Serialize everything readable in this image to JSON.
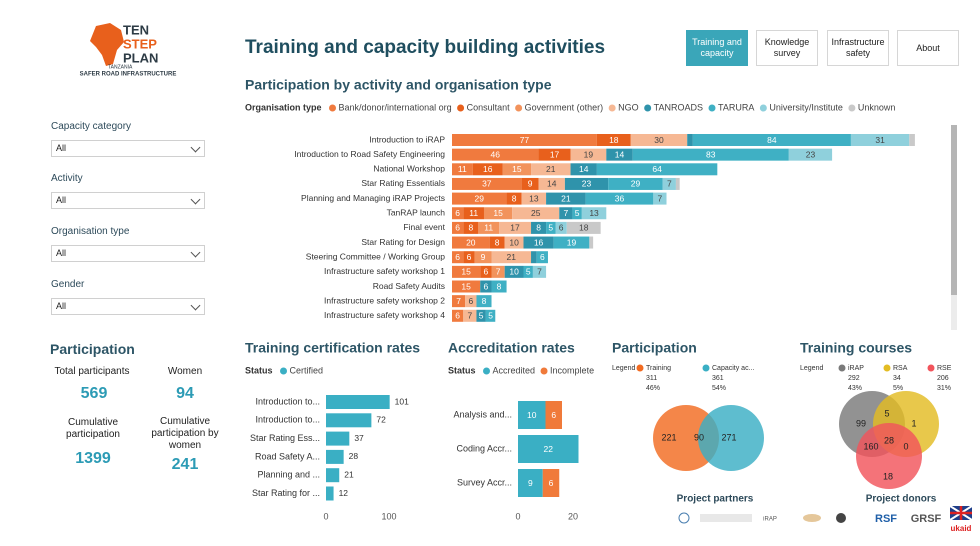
{
  "header": {
    "logo": {
      "line1": "TEN",
      "line2": "STEP",
      "line3": "PLAN",
      "country": "TANZANIA",
      "tagline": "SAFER ROAD INFRASTRUCTURE"
    },
    "title": "Training and capacity building activities"
  },
  "nav": [
    {
      "label": "Training and capacity",
      "active": true
    },
    {
      "label": "Knowledge survey",
      "active": false
    },
    {
      "label": "Infrastructure safety",
      "active": false
    },
    {
      "label": "About",
      "active": false
    }
  ],
  "filters": [
    {
      "label": "Capacity category",
      "value": "All"
    },
    {
      "label": "Activity",
      "value": "All"
    },
    {
      "label": "Organisation type",
      "value": "All"
    },
    {
      "label": "Gender",
      "value": "All"
    }
  ],
  "kpis": {
    "title": "Participation",
    "items": [
      {
        "label": "Total participants",
        "value": 569
      },
      {
        "label": "Women",
        "value": 94
      },
      {
        "label": "Cumulative participation",
        "value": 1399
      },
      {
        "label": "Cumulative participation by women",
        "value": 241
      }
    ]
  },
  "chart_data": [
    {
      "type": "bar",
      "orientation": "horizontal",
      "stacked": true,
      "title": "Participation by activity and organisation type",
      "legend_title": "Organisation type",
      "categories": [
        "Introduction to iRAP",
        "Introduction to Road Safety Engineering",
        "National Workshop",
        "Star Rating Essentials",
        "Planning and Managing iRAP Projects",
        "TanRAP launch",
        "Final event",
        "Star Rating for Design",
        "Steering Committee / Working Group",
        "Infrastructure safety workshop 1",
        "Road Safety Audits",
        "Infrastructure safety workshop 2",
        "Infrastructure safety workshop 4"
      ],
      "series": [
        {
          "name": "Bank/donor/international org",
          "color": "#f07a3e",
          "values": [
            77,
            46,
            11,
            37,
            29,
            6,
            6,
            20,
            6,
            15,
            15,
            7,
            6
          ]
        },
        {
          "name": "Consultant",
          "color": "#e8601c",
          "values": [
            18,
            17,
            16,
            9,
            8,
            11,
            8,
            8,
            6,
            6,
            null,
            null,
            null
          ]
        },
        {
          "name": "Government (other)",
          "color": "#f2935c",
          "values": [
            null,
            null,
            15,
            null,
            null,
            15,
            11,
            null,
            9,
            7,
            null,
            null,
            null
          ]
        },
        {
          "name": "NGO",
          "color": "#f6b894",
          "values": [
            30,
            19,
            21,
            14,
            13,
            25,
            17,
            10,
            21,
            null,
            null,
            6,
            7
          ]
        },
        {
          "name": "TANROADS",
          "color": "#2f93ab",
          "values": [
            3,
            14,
            14,
            23,
            21,
            7,
            8,
            16,
            3,
            10,
            6,
            null,
            5
          ]
        },
        {
          "name": "TARURA",
          "color": "#3fb0c4",
          "values": [
            84,
            83,
            64,
            29,
            36,
            5,
            5,
            19,
            6,
            5,
            8,
            8,
            5
          ]
        },
        {
          "name": "University/Institute",
          "color": "#8fd0dc",
          "values": [
            31,
            23,
            null,
            7,
            7,
            13,
            6,
            null,
            null,
            7,
            null,
            null,
            null
          ]
        },
        {
          "name": "Unknown",
          "color": "#c9c9c9",
          "values": [
            3,
            null,
            null,
            2,
            null,
            null,
            18,
            2,
            null,
            null,
            null,
            null,
            null
          ]
        }
      ],
      "xlim": [
        0,
        262
      ]
    },
    {
      "type": "bar",
      "orientation": "horizontal",
      "stacked": false,
      "title": "Training certification rates",
      "legend_title": "Status",
      "categories": [
        "Introduction to...",
        "Introduction to...",
        "Star Rating Ess...",
        "Road Safety A...",
        "Planning and ...",
        "Star Rating for ..."
      ],
      "series": [
        {
          "name": "Certified",
          "color": "#3aafc4",
          "values": [
            101,
            72,
            37,
            28,
            21,
            12
          ]
        }
      ],
      "xlim": [
        0,
        165
      ],
      "xticks": [
        0,
        100
      ]
    },
    {
      "type": "bar",
      "orientation": "horizontal",
      "stacked": true,
      "title": "Accreditation rates",
      "legend_title": "Status",
      "categories": [
        "Analysis and...",
        "Coding Accr...",
        "Survey Accr..."
      ],
      "series": [
        {
          "name": "Accredited",
          "color": "#3aafc4",
          "values": [
            10,
            22,
            9
          ]
        },
        {
          "name": "Incomplete",
          "color": "#f07a3a",
          "values": [
            6,
            null,
            6
          ]
        }
      ],
      "xlim": [
        0,
        26
      ],
      "xticks": [
        0,
        20
      ]
    },
    {
      "type": "venn",
      "title": "Participation",
      "legend_title": "Legend",
      "sets": [
        {
          "name": "Training",
          "color": "#f26b21",
          "total": 311,
          "share": 46,
          "share_label": "46%"
        },
        {
          "name": "Capacity ac...",
          "color": "#3aafc4",
          "total": 361,
          "share": 54,
          "share_label": "54%"
        }
      ],
      "values": [
        221,
        90,
        271
      ]
    },
    {
      "type": "venn",
      "title": "Training courses",
      "legend_title": "Legend",
      "sets": [
        {
          "name": "iRAP",
          "color": "#7a7a7a",
          "total": 292,
          "share": 43,
          "share_label": "43%"
        },
        {
          "name": "RSA",
          "color": "#e3bc23",
          "total": 34,
          "share": 5,
          "share_label": "5%"
        },
        {
          "name": "RSE",
          "color": "#f2545b",
          "total": 206,
          "share": 31,
          "share_label": "31%"
        }
      ],
      "values": [
        99,
        5,
        1,
        160,
        28,
        0,
        18
      ]
    }
  ],
  "partners": {
    "title": "Project partners",
    "logos": [
      "iRAP"
    ]
  },
  "donors": {
    "title": "Project donors",
    "logos": [
      "RSF",
      "GRSF",
      "ukaid"
    ]
  }
}
